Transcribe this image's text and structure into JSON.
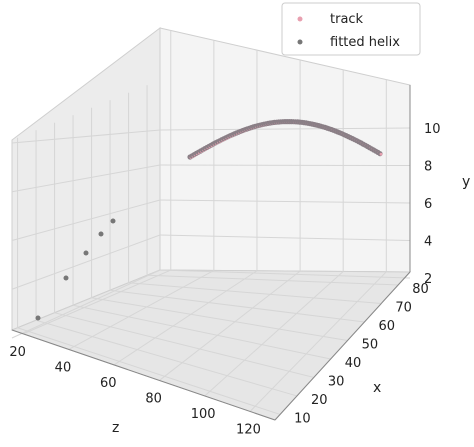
{
  "chart_data": {
    "type": "scatter",
    "projection": "3d",
    "xlabel": "z",
    "ylabel": "x",
    "zlabel": "y",
    "z_axis_ticks": [
      "20",
      "40",
      "60",
      "80",
      "100",
      "120"
    ],
    "x_axis_ticks": [
      "10",
      "20",
      "30",
      "40",
      "50",
      "60",
      "70",
      "80"
    ],
    "y_axis_ticks": [
      "2",
      "4",
      "6",
      "8",
      "10"
    ],
    "grid": true,
    "legend_position": "top-right",
    "colors": {
      "track": "#e8a0b0",
      "fitted_helix": "#777777",
      "pane": "#f2f2f2",
      "grid": "#d6d6d6"
    },
    "series": [
      {
        "name": "track",
        "x": [
          10,
          12,
          14,
          16,
          18
        ],
        "y": [
          2.6,
          4.1,
          5.0,
          5.7,
          6.3
        ],
        "marker": "small-dot"
      },
      {
        "name": "fitted helix",
        "description_points": "dense curve from z≈40 to z≈125 at x≈70–80, rising from y≈8.8 to ≈10.6 then dipping slightly",
        "z": [
          40,
          50,
          60,
          70,
          80,
          90,
          100,
          110,
          120,
          125
        ],
        "x": [
          70,
          71,
          72,
          73,
          74,
          75,
          76,
          77,
          78,
          79
        ],
        "y": [
          8.6,
          9.2,
          9.7,
          10.1,
          10.4,
          10.6,
          10.6,
          10.5,
          10.3,
          10.1
        ],
        "marker": "dot"
      }
    ]
  }
}
